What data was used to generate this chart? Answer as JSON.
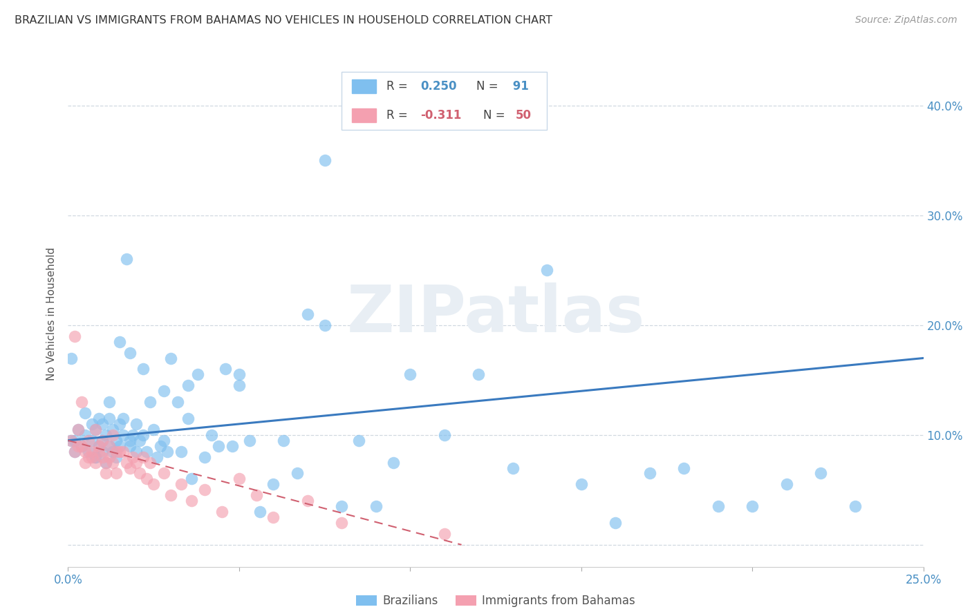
{
  "title": "BRAZILIAN VS IMMIGRANTS FROM BAHAMAS NO VEHICLES IN HOUSEHOLD CORRELATION CHART",
  "source": "Source: ZipAtlas.com",
  "ylabel": "No Vehicles in Household",
  "xlim": [
    0.0,
    0.25
  ],
  "ylim": [
    -0.02,
    0.44
  ],
  "yticks": [
    0.0,
    0.1,
    0.2,
    0.3,
    0.4
  ],
  "xticks": [
    0.0,
    0.05,
    0.1,
    0.15,
    0.2,
    0.25
  ],
  "color_blue": "#7fbfef",
  "color_pink": "#f4a0b0",
  "color_blue_line": "#3a7abf",
  "color_pink_line": "#d06070",
  "color_blue_text": "#4a90c4",
  "watermark": "ZIPatlas",
  "background_color": "#ffffff",
  "grid_color": "#d0d8e0",
  "brazilian_x": [
    0.001,
    0.002,
    0.003,
    0.004,
    0.005,
    0.005,
    0.006,
    0.007,
    0.007,
    0.008,
    0.008,
    0.009,
    0.009,
    0.01,
    0.01,
    0.01,
    0.011,
    0.011,
    0.012,
    0.012,
    0.013,
    0.013,
    0.014,
    0.014,
    0.015,
    0.015,
    0.016,
    0.016,
    0.017,
    0.018,
    0.018,
    0.019,
    0.02,
    0.02,
    0.021,
    0.022,
    0.023,
    0.024,
    0.025,
    0.026,
    0.027,
    0.028,
    0.029,
    0.03,
    0.032,
    0.033,
    0.035,
    0.036,
    0.038,
    0.04,
    0.042,
    0.044,
    0.046,
    0.048,
    0.05,
    0.053,
    0.056,
    0.06,
    0.063,
    0.067,
    0.07,
    0.075,
    0.08,
    0.085,
    0.09,
    0.095,
    0.1,
    0.11,
    0.12,
    0.13,
    0.14,
    0.15,
    0.16,
    0.17,
    0.18,
    0.19,
    0.2,
    0.21,
    0.22,
    0.23,
    0.001,
    0.002,
    0.008,
    0.012,
    0.015,
    0.018,
    0.022,
    0.028,
    0.035,
    0.05,
    0.075
  ],
  "brazilian_y": [
    0.095,
    0.085,
    0.105,
    0.09,
    0.1,
    0.12,
    0.085,
    0.11,
    0.095,
    0.08,
    0.105,
    0.09,
    0.115,
    0.085,
    0.095,
    0.11,
    0.1,
    0.075,
    0.09,
    0.115,
    0.085,
    0.105,
    0.095,
    0.08,
    0.11,
    0.09,
    0.1,
    0.115,
    0.26,
    0.09,
    0.175,
    0.1,
    0.085,
    0.11,
    0.095,
    0.1,
    0.085,
    0.13,
    0.105,
    0.08,
    0.09,
    0.14,
    0.085,
    0.17,
    0.13,
    0.085,
    0.115,
    0.06,
    0.155,
    0.08,
    0.1,
    0.09,
    0.16,
    0.09,
    0.145,
    0.095,
    0.03,
    0.055,
    0.095,
    0.065,
    0.21,
    0.2,
    0.035,
    0.095,
    0.035,
    0.075,
    0.155,
    0.1,
    0.155,
    0.07,
    0.25,
    0.055,
    0.02,
    0.065,
    0.07,
    0.035,
    0.035,
    0.055,
    0.065,
    0.035,
    0.17,
    0.095,
    0.08,
    0.13,
    0.185,
    0.095,
    0.16,
    0.095,
    0.145,
    0.155,
    0.35
  ],
  "bahamas_x": [
    0.001,
    0.002,
    0.002,
    0.003,
    0.003,
    0.004,
    0.004,
    0.005,
    0.005,
    0.006,
    0.006,
    0.007,
    0.007,
    0.008,
    0.008,
    0.009,
    0.009,
    0.01,
    0.01,
    0.011,
    0.011,
    0.012,
    0.012,
    0.013,
    0.013,
    0.014,
    0.014,
    0.015,
    0.016,
    0.017,
    0.018,
    0.019,
    0.02,
    0.021,
    0.022,
    0.023,
    0.024,
    0.025,
    0.028,
    0.03,
    0.033,
    0.036,
    0.04,
    0.045,
    0.05,
    0.055,
    0.06,
    0.07,
    0.08,
    0.11
  ],
  "bahamas_y": [
    0.095,
    0.19,
    0.085,
    0.09,
    0.105,
    0.09,
    0.13,
    0.075,
    0.085,
    0.08,
    0.095,
    0.085,
    0.08,
    0.075,
    0.105,
    0.085,
    0.09,
    0.08,
    0.095,
    0.075,
    0.065,
    0.09,
    0.08,
    0.1,
    0.075,
    0.085,
    0.065,
    0.085,
    0.085,
    0.075,
    0.07,
    0.08,
    0.075,
    0.065,
    0.08,
    0.06,
    0.075,
    0.055,
    0.065,
    0.045,
    0.055,
    0.04,
    0.05,
    0.03,
    0.06,
    0.045,
    0.025,
    0.04,
    0.02,
    0.01
  ],
  "braz_line_x": [
    0.0,
    0.25
  ],
  "braz_line_y": [
    0.095,
    0.17
  ],
  "bah_line_x": [
    0.0,
    0.115
  ],
  "bah_line_y": [
    0.095,
    0.0
  ]
}
